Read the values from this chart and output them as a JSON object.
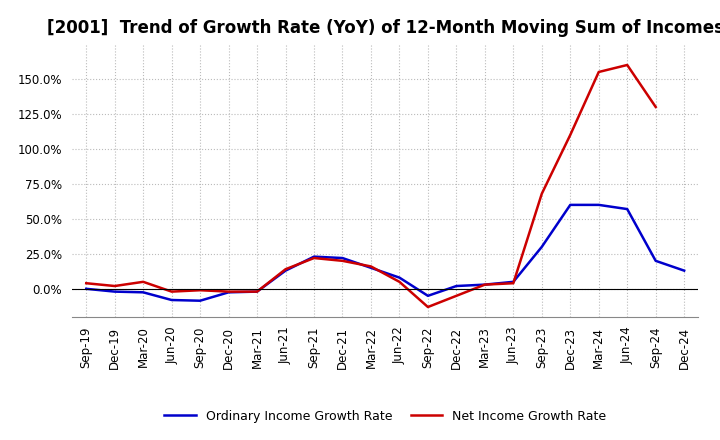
{
  "title": "[2001]  Trend of Growth Rate (YoY) of 12-Month Moving Sum of Incomes",
  "x_labels": [
    "Sep-19",
    "Dec-19",
    "Mar-20",
    "Jun-20",
    "Sep-20",
    "Dec-20",
    "Mar-21",
    "Jun-21",
    "Sep-21",
    "Dec-21",
    "Mar-22",
    "Jun-22",
    "Sep-22",
    "Dec-22",
    "Mar-23",
    "Jun-23",
    "Sep-23",
    "Dec-23",
    "Mar-24",
    "Jun-24",
    "Sep-24",
    "Dec-24"
  ],
  "ordinary_income": [
    0.0,
    -2.0,
    -2.5,
    -8.0,
    -8.5,
    -2.5,
    -2.0,
    13.0,
    23.0,
    22.0,
    15.0,
    8.0,
    -5.0,
    2.0,
    3.0,
    5.0,
    30.0,
    60.0,
    60.0,
    57.0,
    20.0,
    13.0
  ],
  "net_income": [
    4.0,
    2.0,
    5.0,
    -2.0,
    -1.0,
    -2.0,
    -2.0,
    14.0,
    22.0,
    20.0,
    16.0,
    5.0,
    -13.0,
    -5.0,
    3.0,
    4.0,
    68.0,
    110.0,
    155.0,
    160.0,
    130.0,
    null
  ],
  "ordinary_color": "#0000cc",
  "net_color": "#cc0000",
  "ylim_min": -20,
  "ylim_max": 175,
  "yticks": [
    0,
    25,
    50,
    75,
    100,
    125,
    150
  ],
  "legend_ordinary": "Ordinary Income Growth Rate",
  "legend_net": "Net Income Growth Rate",
  "bg_color": "#ffffff",
  "grid_color": "#bbbbbb",
  "line_width": 1.8,
  "title_fontsize": 12,
  "tick_fontsize": 8.5
}
